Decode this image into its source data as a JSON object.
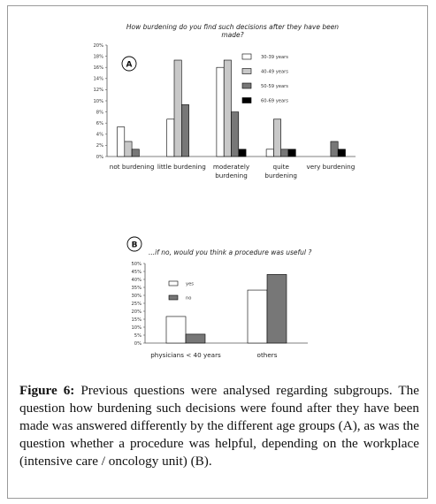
{
  "chart_data": [
    {
      "type": "bar",
      "panel_label": "A",
      "title": "How burdening do you find such decisions after they have been made?",
      "title_lines": [
        "How burdening do you find such decisions after they have been",
        "made?"
      ],
      "categories": [
        "not burdening",
        "little burdening",
        "moderately burdening",
        "quite burdening",
        "very burdening"
      ],
      "category_lines": [
        [
          "not burdening"
        ],
        [
          "little burdening"
        ],
        [
          "moderately",
          "burdening"
        ],
        [
          "quite",
          "burdening"
        ],
        [
          "very burdening"
        ]
      ],
      "series": [
        {
          "name": "30-39 years",
          "color": "#ffffff",
          "values": [
            5.3,
            6.7,
            16.0,
            1.3,
            0
          ]
        },
        {
          "name": "40-49 years",
          "color": "#c8c8c8",
          "values": [
            2.7,
            17.3,
            17.3,
            6.7,
            0
          ]
        },
        {
          "name": "50-59 years",
          "color": "#777777",
          "values": [
            1.3,
            9.3,
            8.0,
            1.3,
            2.7
          ]
        },
        {
          "name": "60-69 years",
          "color": "#000000",
          "values": [
            0,
            0,
            1.3,
            1.3,
            1.3
          ]
        }
      ],
      "ylim": [
        0,
        20
      ],
      "yticks": [
        "0%",
        "2%",
        "4%",
        "6%",
        "8%",
        "10%",
        "12%",
        "14%",
        "16%",
        "18%",
        "20%"
      ],
      "legend_position": "top-right",
      "grid": false
    },
    {
      "type": "bar",
      "panel_label": "B",
      "title": "...if no, would you think a procedure was useful ?",
      "categories": [
        "physicians < 40 years",
        "others"
      ],
      "series": [
        {
          "name": "yes",
          "color": "#ffffff",
          "values": [
            16.7,
            33.3
          ]
        },
        {
          "name": "no",
          "color": "#777777",
          "values": [
            5.6,
            43.1
          ]
        }
      ],
      "ylim": [
        0,
        50
      ],
      "yticks": [
        "0%",
        "5%",
        "10%",
        "15%",
        "20%",
        "25%",
        "30%",
        "35%",
        "40%",
        "45%",
        "50%"
      ],
      "legend_position": "top-left",
      "grid": false
    }
  ],
  "caption": {
    "label": "Figure 6:",
    "text": " Previous questions were analysed regarding subgroups. The question how burdening such decisions were found after they have been made was answered differently by the different age groups (A), as was the question whether a procedure was helpful, depending on the workplace (intensive care / oncology unit) (B)."
  }
}
